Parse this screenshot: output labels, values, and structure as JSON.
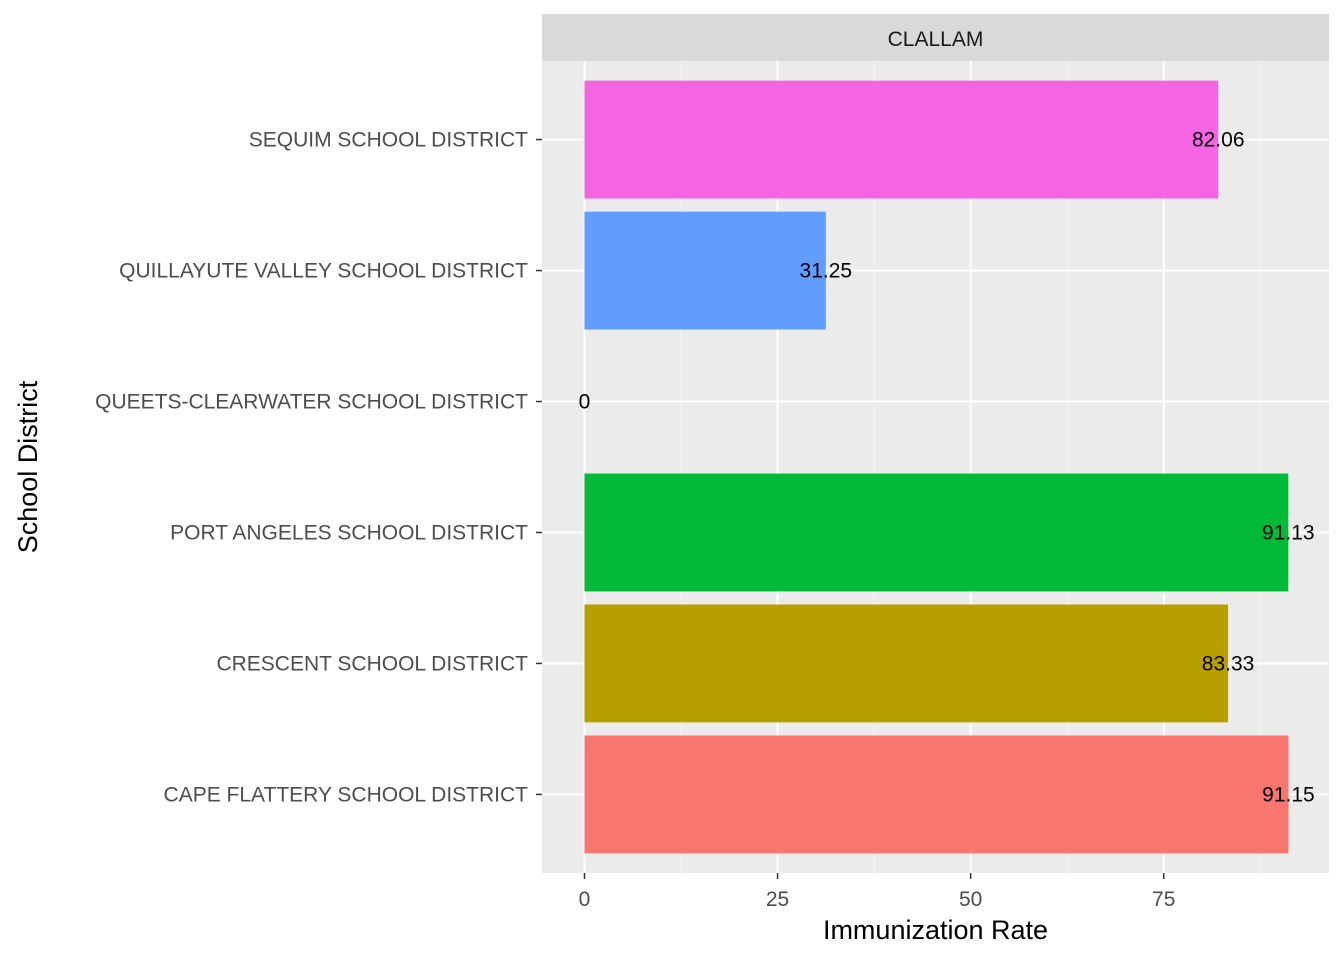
{
  "chart_data": {
    "type": "bar",
    "orientation": "horizontal",
    "facet_label": "CLALLAM",
    "xlabel": "Immunization Rate",
    "ylabel": "School District",
    "xlim": [
      -5.5,
      96.4
    ],
    "x_ticks": [
      "0",
      "25",
      "50",
      "75"
    ],
    "x_tick_values": [
      0,
      25,
      50,
      75
    ],
    "grid": true,
    "legend": "none",
    "categories": [
      "CAPE FLATTERY SCHOOL DISTRICT",
      "CRESCENT SCHOOL DISTRICT",
      "PORT ANGELES SCHOOL DISTRICT",
      "QUEETS-CLEARWATER SCHOOL DISTRICT",
      "QUILLAYUTE VALLEY SCHOOL DISTRICT",
      "SEQUIM SCHOOL DISTRICT"
    ],
    "values": [
      91.15,
      83.33,
      91.13,
      0,
      31.25,
      82.06
    ],
    "value_labels": [
      "91.15",
      "83.33",
      "91.13",
      "0",
      "31.25",
      "82.06"
    ],
    "colors": [
      "#F8766D",
      "#B79F00",
      "#00BA38",
      "#00BFC4",
      "#619CFF",
      "#F564E3"
    ]
  }
}
